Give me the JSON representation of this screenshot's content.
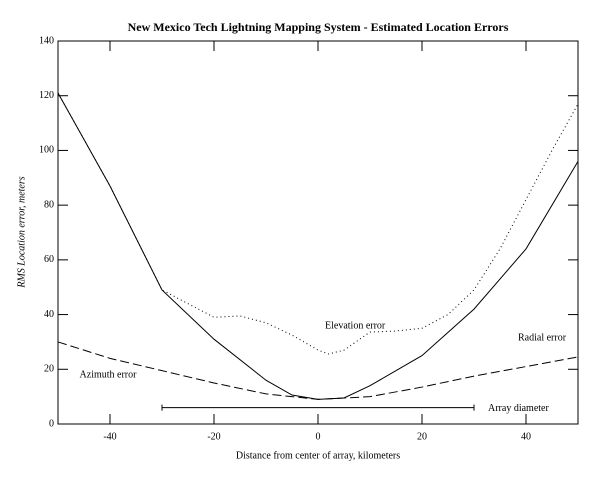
{
  "chart_data": {
    "type": "line",
    "title": "New Mexico Tech Lightning Mapping System - Estimated Location Errors",
    "xlabel": "Distance from center of array, kilometers",
    "ylabel": "RMS Location error, meters",
    "xlim": [
      -50,
      50
    ],
    "xticks": [
      -40,
      -20,
      0,
      20,
      40
    ],
    "ylim": [
      0,
      140
    ],
    "yticks": [
      0,
      20,
      40,
      60,
      80,
      100,
      120,
      140
    ],
    "series": [
      {
        "name": "Elevation error",
        "color": "#000000",
        "dash": "1,3",
        "x": [
          -50,
          -40,
          -30,
          -20,
          -15,
          -10,
          -5,
          0,
          2,
          5,
          10,
          15,
          20,
          25,
          30,
          35,
          40,
          45,
          50
        ],
        "values": [
          121,
          87,
          49,
          39,
          39.5,
          37,
          32.5,
          27,
          25.6,
          27,
          33.6,
          34,
          35,
          40,
          49,
          64,
          82,
          100,
          117
        ]
      },
      {
        "name": "Radial error",
        "color": "#000000",
        "dash": "none",
        "x": [
          -50,
          -40,
          -30,
          -20,
          -10,
          -5,
          0,
          5,
          10,
          20,
          30,
          40,
          50
        ],
        "values": [
          121,
          87,
          49,
          31,
          16,
          10.6,
          9,
          9.5,
          14,
          25,
          42,
          64,
          96
        ]
      },
      {
        "name": "Azimuth error",
        "color": "#000000",
        "dash": "9,4",
        "x": [
          -50,
          -40,
          -30,
          -20,
          -10,
          0,
          10,
          20,
          30,
          40,
          50
        ],
        "values": [
          30,
          24,
          19.5,
          15,
          11,
          9,
          10,
          13.5,
          17.5,
          21,
          24.5
        ]
      }
    ],
    "array_diameter": {
      "label": "Array diameter",
      "x": [
        -30,
        30
      ],
      "y": 6
    }
  }
}
